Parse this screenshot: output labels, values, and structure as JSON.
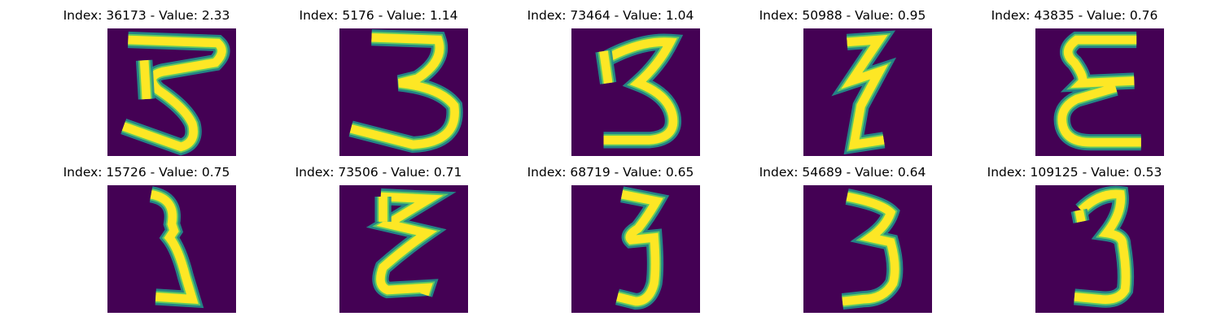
{
  "colors": {
    "background": "#440154",
    "stroke_mid": "#21918c",
    "stroke_edge": "#5ec962",
    "stroke_core": "#fde725"
  },
  "panels": [
    {
      "title": "Index: 36173 - Value: 2.33",
      "index": 36173,
      "value": 2.33,
      "image": "digit-3-wide"
    },
    {
      "title": "Index: 5176 - Value: 1.14",
      "index": 5176,
      "value": 1.14,
      "image": "digit-3-open-loop"
    },
    {
      "title": "Index: 73464 - Value: 1.04",
      "index": 73464,
      "value": 1.04,
      "image": "digit-3-upright"
    },
    {
      "title": "Index: 50988 - Value: 0.95",
      "index": 50988,
      "value": 0.95,
      "image": "digit-3-zigzag"
    },
    {
      "title": "Index: 43835 - Value: 0.76",
      "index": 43835,
      "value": 0.76,
      "image": "digit-3-e-shape"
    },
    {
      "title": "Index: 15726 - Value: 0.75",
      "index": 15726,
      "value": 0.75,
      "image": "digit-3-thin-slanted"
    },
    {
      "title": "Index: 73506 - Value: 0.71",
      "index": 73506,
      "value": 0.71,
      "image": "digit-3-z-shape"
    },
    {
      "title": "Index: 68719 - Value: 0.65",
      "index": 68719,
      "value": 0.65,
      "image": "digit-3-narrow"
    },
    {
      "title": "Index: 54689 - Value: 0.64",
      "index": 54689,
      "value": 0.64,
      "image": "digit-3-narrow-curl"
    },
    {
      "title": "Index: 109125 - Value: 0.53",
      "index": 109125,
      "value": 0.53,
      "image": "digit-3-bold"
    }
  ]
}
